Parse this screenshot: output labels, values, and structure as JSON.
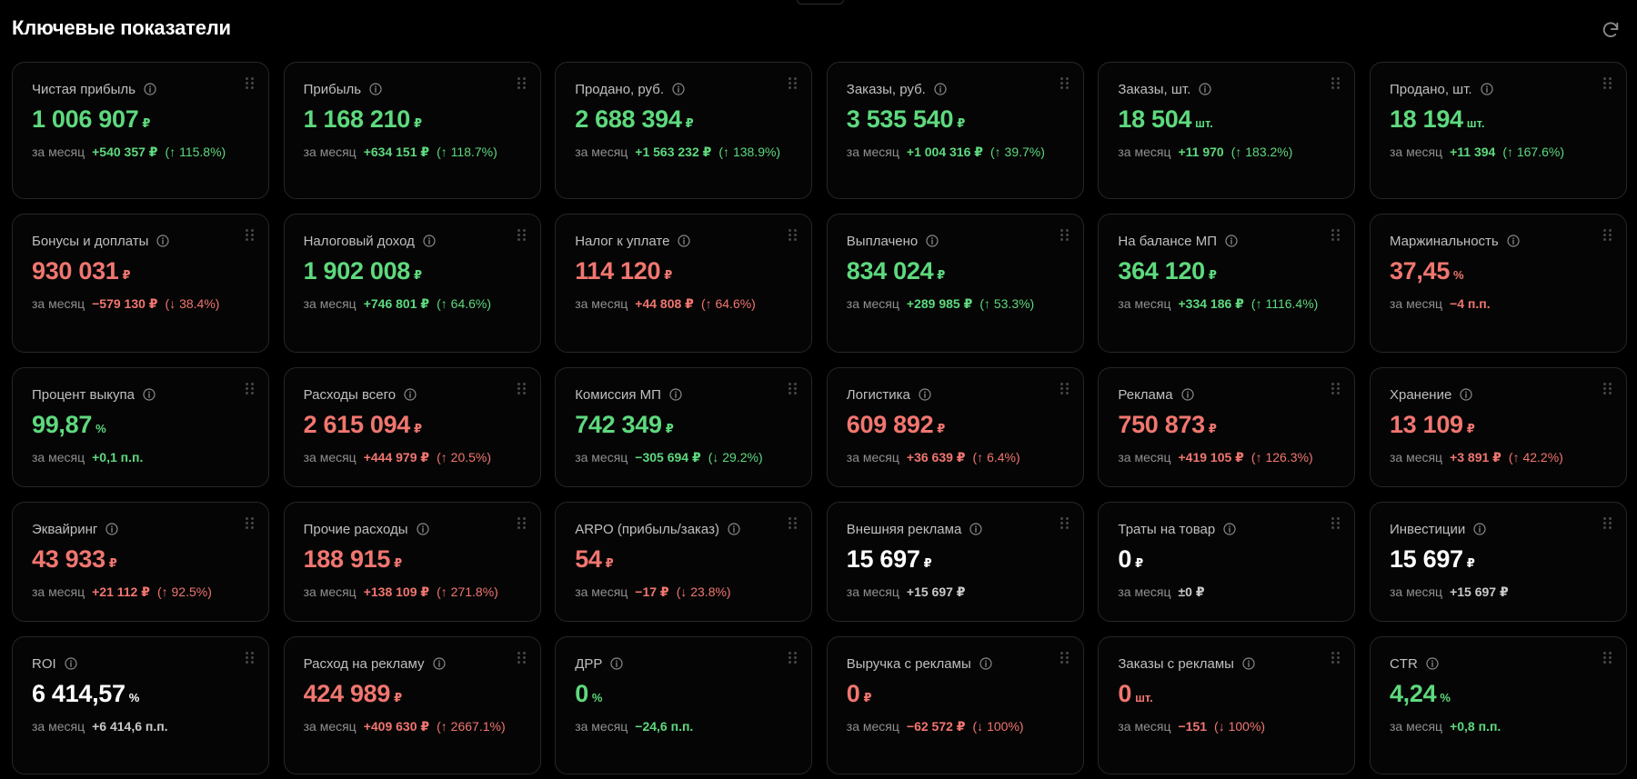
{
  "header": {
    "title": "Ключевые показатели",
    "refresh_icon": "refresh-icon"
  },
  "period_label": "за месяц",
  "colors": {
    "positive": "#5ed97e",
    "negative": "#f17670",
    "neutral": "#ffffff",
    "background": "#000000",
    "card_border": "#262626"
  },
  "cards": [
    {
      "name": "net-profit",
      "label": "Чистая прибыль",
      "value": "1 006 907",
      "unit": "₽",
      "color": "green",
      "delta_abs": "+540 357 ₽",
      "delta_pct": "(↑ 115.8%)",
      "delta_color": "green"
    },
    {
      "name": "profit",
      "label": "Прибыль",
      "value": "1 168 210",
      "unit": "₽",
      "color": "green",
      "delta_abs": "+634 151 ₽",
      "delta_pct": "(↑ 118.7%)",
      "delta_color": "green"
    },
    {
      "name": "sold-rub",
      "label": "Продано, руб.",
      "value": "2 688 394",
      "unit": "₽",
      "color": "green",
      "delta_abs": "+1 563 232 ₽",
      "delta_pct": "(↑ 138.9%)",
      "delta_color": "green"
    },
    {
      "name": "orders-rub",
      "label": "Заказы, руб.",
      "value": "3 535 540",
      "unit": "₽",
      "color": "green",
      "delta_abs": "+1 004 316 ₽",
      "delta_pct": "(↑ 39.7%)",
      "delta_color": "green"
    },
    {
      "name": "orders-pcs",
      "label": "Заказы, шт.",
      "value": "18 504",
      "unit": "шт.",
      "color": "green",
      "delta_abs": "+11 970",
      "delta_pct": "(↑ 183.2%)",
      "delta_color": "green"
    },
    {
      "name": "sold-pcs",
      "label": "Продано, шт.",
      "value": "18 194",
      "unit": "шт.",
      "color": "green",
      "delta_abs": "+11 394",
      "delta_pct": "(↑ 167.6%)",
      "delta_color": "green"
    },
    {
      "name": "bonuses",
      "label": "Бонусы и доплаты",
      "value": "930 031",
      "unit": "₽",
      "color": "red",
      "delta_abs": "−579 130 ₽",
      "delta_pct": "(↓ 38.4%)",
      "delta_color": "red"
    },
    {
      "name": "tax-income",
      "label": "Налоговый доход",
      "value": "1 902 008",
      "unit": "₽",
      "color": "green",
      "delta_abs": "+746 801 ₽",
      "delta_pct": "(↑ 64.6%)",
      "delta_color": "green"
    },
    {
      "name": "tax-payable",
      "label": "Налог к уплате",
      "value": "114 120",
      "unit": "₽",
      "color": "red",
      "delta_abs": "+44 808 ₽",
      "delta_pct": "(↑ 64.6%)",
      "delta_color": "red"
    },
    {
      "name": "paid-out",
      "label": "Выплачено",
      "value": "834 024",
      "unit": "₽",
      "color": "green",
      "delta_abs": "+289 985 ₽",
      "delta_pct": "(↑ 53.3%)",
      "delta_color": "green"
    },
    {
      "name": "mp-balance",
      "label": "На балансе МП",
      "value": "364 120",
      "unit": "₽",
      "color": "green",
      "delta_abs": "+334 186 ₽",
      "delta_pct": "(↑ 1116.4%)",
      "delta_color": "green"
    },
    {
      "name": "margin",
      "label": "Маржинальность",
      "value": "37,45",
      "unit": "%",
      "color": "red",
      "delta_abs": "−4 п.п.",
      "delta_pct": "",
      "delta_color": "red"
    },
    {
      "name": "buyout-rate",
      "label": "Процент выкупа",
      "value": "99,87",
      "unit": "%",
      "color": "green",
      "delta_abs": "+0,1 п.п.",
      "delta_pct": "",
      "delta_color": "green"
    },
    {
      "name": "expenses-total",
      "label": "Расходы всего",
      "value": "2 615 094",
      "unit": "₽",
      "color": "red",
      "delta_abs": "+444 979 ₽",
      "delta_pct": "(↑ 20.5%)",
      "delta_color": "red"
    },
    {
      "name": "mp-commission",
      "label": "Комиссия МП",
      "value": "742 349",
      "unit": "₽",
      "color": "green",
      "delta_abs": "−305 694 ₽",
      "delta_pct": "(↓ 29.2%)",
      "delta_color": "green"
    },
    {
      "name": "logistics",
      "label": "Логистика",
      "value": "609 892",
      "unit": "₽",
      "color": "red",
      "delta_abs": "+36 639 ₽",
      "delta_pct": "(↑ 6.4%)",
      "delta_color": "red"
    },
    {
      "name": "advertising",
      "label": "Реклама",
      "value": "750 873",
      "unit": "₽",
      "color": "red",
      "delta_abs": "+419 105 ₽",
      "delta_pct": "(↑ 126.3%)",
      "delta_color": "red"
    },
    {
      "name": "storage",
      "label": "Хранение",
      "value": "13 109",
      "unit": "₽",
      "color": "red",
      "delta_abs": "+3 891 ₽",
      "delta_pct": "(↑ 42.2%)",
      "delta_color": "red"
    },
    {
      "name": "acquiring",
      "label": "Эквайринг",
      "value": "43 933",
      "unit": "₽",
      "color": "red",
      "delta_abs": "+21 112 ₽",
      "delta_pct": "(↑ 92.5%)",
      "delta_color": "red"
    },
    {
      "name": "other-expenses",
      "label": "Прочие расходы",
      "value": "188 915",
      "unit": "₽",
      "color": "red",
      "delta_abs": "+138 109 ₽",
      "delta_pct": "(↑ 271.8%)",
      "delta_color": "red"
    },
    {
      "name": "arpo",
      "label": "ARPO (прибыль/заказ)",
      "value": "54",
      "unit": "₽",
      "color": "red",
      "delta_abs": "−17 ₽",
      "delta_pct": "(↓ 23.8%)",
      "delta_color": "red"
    },
    {
      "name": "external-ads",
      "label": "Внешняя реклама",
      "value": "15 697",
      "unit": "₽",
      "color": "white",
      "delta_abs": "+15 697 ₽",
      "delta_pct": "",
      "delta_color": "gray"
    },
    {
      "name": "goods-spend",
      "label": "Траты на товар",
      "value": "0",
      "unit": "₽",
      "color": "white",
      "delta_abs": "±0 ₽",
      "delta_pct": "",
      "delta_color": "gray"
    },
    {
      "name": "investments",
      "label": "Инвестиции",
      "value": "15 697",
      "unit": "₽",
      "color": "white",
      "delta_abs": "+15 697 ₽",
      "delta_pct": "",
      "delta_color": "gray"
    },
    {
      "name": "roi",
      "label": "ROI",
      "value": "6 414,57",
      "unit": "%",
      "color": "white",
      "delta_abs": "+6 414,6 п.п.",
      "delta_pct": "",
      "delta_color": "gray"
    },
    {
      "name": "ad-spend",
      "label": "Расход на рекламу",
      "value": "424 989",
      "unit": "₽",
      "color": "red",
      "delta_abs": "+409 630 ₽",
      "delta_pct": "(↑ 2667.1%)",
      "delta_color": "red"
    },
    {
      "name": "drr",
      "label": "ДРР",
      "value": "0",
      "unit": "%",
      "color": "green",
      "delta_abs": "−24,6 п.п.",
      "delta_pct": "",
      "delta_color": "green"
    },
    {
      "name": "ad-revenue",
      "label": "Выручка с рекламы",
      "value": "0",
      "unit": "₽",
      "color": "red",
      "delta_abs": "−62 572 ₽",
      "delta_pct": "(↓ 100%)",
      "delta_color": "red"
    },
    {
      "name": "ad-orders",
      "label": "Заказы с рекламы",
      "value": "0",
      "unit": "шт.",
      "color": "red",
      "delta_abs": "−151",
      "delta_pct": "(↓ 100%)",
      "delta_color": "red"
    },
    {
      "name": "ctr",
      "label": "CTR",
      "value": "4,24",
      "unit": "%",
      "color": "green",
      "delta_abs": "+0,8 п.п.",
      "delta_pct": "",
      "delta_color": "green"
    }
  ]
}
